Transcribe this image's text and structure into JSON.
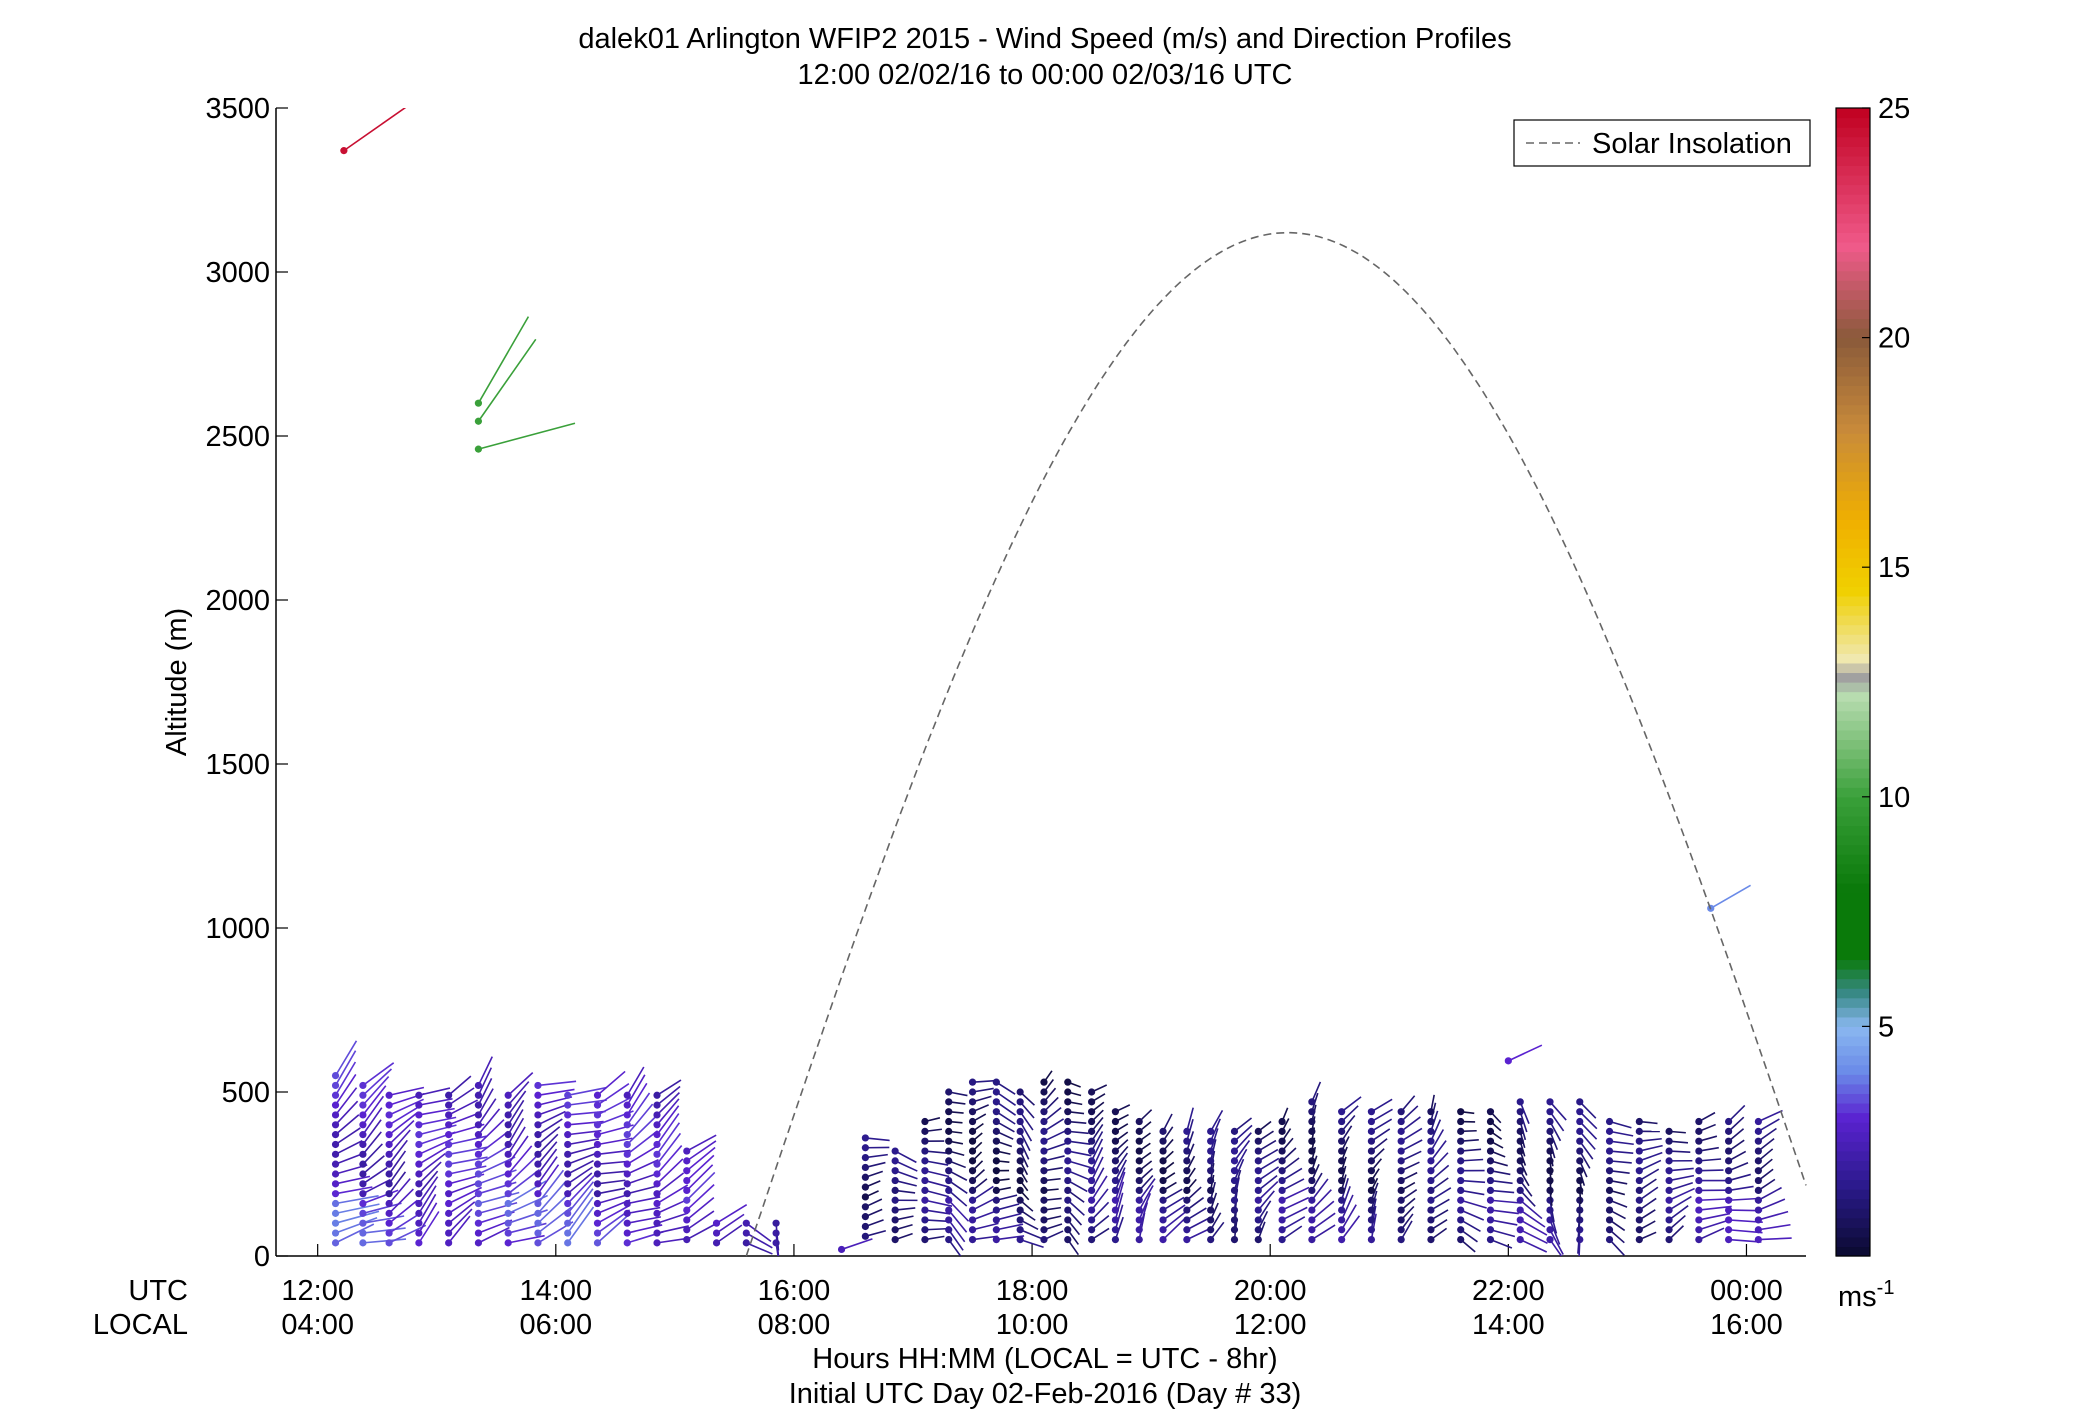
{
  "chart_data": {
    "type": "scatter",
    "title": "dalek01 Arlington WFIP2 2015 - Wind Speed (m/s) and Direction Profiles",
    "subtitle": "12:00 02/02/16 to 00:00 02/03/16  UTC",
    "ylabel": "Altitude (m)",
    "xlabel": "Hours HH:MM  (LOCAL = UTC - 8hr)",
    "xlabel2": "Initial UTC Day 02-Feb-2016 (Day # 33)",
    "row_label_utc": "UTC",
    "row_label_local": "LOCAL",
    "ylim": [
      0,
      3500
    ],
    "xlim": [
      11.65,
      24.5
    ],
    "yticks": [
      0,
      500,
      1000,
      1500,
      2000,
      2500,
      3000,
      3500
    ],
    "xticks_utc": [
      {
        "h": 12,
        "label": "12:00"
      },
      {
        "h": 14,
        "label": "14:00"
      },
      {
        "h": 16,
        "label": "16:00"
      },
      {
        "h": 18,
        "label": "18:00"
      },
      {
        "h": 20,
        "label": "20:00"
      },
      {
        "h": 22,
        "label": "22:00"
      },
      {
        "h": 24,
        "label": "00:00"
      }
    ],
    "xticks_local": [
      "04:00",
      "06:00",
      "08:00",
      "10:00",
      "12:00",
      "14:00",
      "16:00"
    ],
    "legend": {
      "label": "Solar Insolation",
      "position": "top-right",
      "style": "dashed",
      "color": "#666666"
    },
    "solar_insolation": {
      "start_h": 15.6,
      "end_h": 24.5,
      "peak_h": 20.15,
      "peak_altitude": 3120
    },
    "colorbar": {
      "min": 0,
      "max": 25,
      "ticks": [
        5,
        10,
        15,
        20,
        25
      ],
      "unit_label": "ms",
      "unit_exp": "-1",
      "stops": [
        {
          "v": 0,
          "c": "#0a0a2e"
        },
        {
          "v": 1.5,
          "c": "#2a1a8a"
        },
        {
          "v": 3,
          "c": "#5a22d0"
        },
        {
          "v": 4,
          "c": "#6a8ae8"
        },
        {
          "v": 5,
          "c": "#8ab8f0"
        },
        {
          "v": 5.7,
          "c": "#3a8a8a"
        },
        {
          "v": 6.5,
          "c": "#0a7a0a"
        },
        {
          "v": 8,
          "c": "#0a7a0a"
        },
        {
          "v": 10,
          "c": "#3aa03a"
        },
        {
          "v": 12.2,
          "c": "#b8dcb0"
        },
        {
          "v": 12.6,
          "c": "#a0a0a0"
        },
        {
          "v": 13,
          "c": "#f0e8b0"
        },
        {
          "v": 14.5,
          "c": "#f0d000"
        },
        {
          "v": 16,
          "c": "#f0b000"
        },
        {
          "v": 18,
          "c": "#c88a3a"
        },
        {
          "v": 20,
          "c": "#8a5a3a"
        },
        {
          "v": 22,
          "c": "#f05a8a"
        },
        {
          "v": 25,
          "c": "#c00020"
        }
      ]
    },
    "series": [
      {
        "profiles": [
          {
            "h": 12.15,
            "z0": 40,
            "z1": 560,
            "dz": 30,
            "speed": 2.8,
            "dir": 235
          },
          {
            "h": 12.38,
            "z0": 40,
            "z1": 530,
            "dz": 30,
            "speed": 2.6,
            "dir": 240
          },
          {
            "h": 12.6,
            "z0": 40,
            "z1": 510,
            "dz": 30,
            "speed": 2.5,
            "dir": 240
          },
          {
            "h": 12.85,
            "z0": 40,
            "z1": 490,
            "dz": 30,
            "speed": 2.6,
            "dir": 235
          },
          {
            "h": 13.1,
            "z0": 40,
            "z1": 495,
            "dz": 30,
            "speed": 2.7,
            "dir": 235
          },
          {
            "h": 13.35,
            "z0": 40,
            "z1": 520,
            "dz": 30,
            "speed": 2.8,
            "dir": 230
          },
          {
            "h": 13.6,
            "z0": 40,
            "z1": 505,
            "dz": 30,
            "speed": 2.7,
            "dir": 235
          },
          {
            "h": 13.85,
            "z0": 40,
            "z1": 525,
            "dz": 30,
            "speed": 2.6,
            "dir": 240
          },
          {
            "h": 14.1,
            "z0": 40,
            "z1": 500,
            "dz": 30,
            "speed": 2.7,
            "dir": 240
          },
          {
            "h": 14.35,
            "z0": 40,
            "z1": 500,
            "dz": 30,
            "speed": 2.6,
            "dir": 240
          },
          {
            "h": 14.6,
            "z0": 40,
            "z1": 495,
            "dz": 30,
            "speed": 2.7,
            "dir": 235
          },
          {
            "h": 14.85,
            "z0": 40,
            "z1": 495,
            "dz": 30,
            "speed": 2.6,
            "dir": 240
          },
          {
            "h": 15.1,
            "z0": 50,
            "z1": 330,
            "dz": 30,
            "speed": 2.4,
            "dir": 250
          },
          {
            "h": 15.35,
            "z0": 40,
            "z1": 100,
            "dz": 30,
            "speed": 2.0,
            "dir": 260
          },
          {
            "h": 15.6,
            "z0": 40,
            "z1": 100,
            "dz": 30,
            "speed": 1.2,
            "dir": 300
          },
          {
            "h": 15.85,
            "z0": 40,
            "z1": 100,
            "dz": 30,
            "speed": 1.0,
            "dir": 330
          },
          {
            "h": 16.4,
            "z0": 20,
            "z1": 20,
            "dz": 30,
            "speed": 1.5,
            "dir": 230
          },
          {
            "h": 16.6,
            "z0": 60,
            "z1": 360,
            "dz": 30,
            "speed": 1.0,
            "dir": 270
          },
          {
            "h": 16.85,
            "z0": 50,
            "z1": 340,
            "dz": 30,
            "speed": 1.0,
            "dir": 275
          },
          {
            "h": 17.1,
            "z0": 50,
            "z1": 420,
            "dz": 30,
            "speed": 1.1,
            "dir": 260
          },
          {
            "h": 17.3,
            "z0": 50,
            "z1": 520,
            "dz": 30,
            "speed": 1.0,
            "dir": 300
          },
          {
            "h": 17.5,
            "z0": 50,
            "z1": 530,
            "dz": 30,
            "speed": 0.8,
            "dir": 250
          },
          {
            "h": 17.7,
            "z0": 50,
            "z1": 550,
            "dz": 30,
            "speed": 0.9,
            "dir": 280
          },
          {
            "h": 17.9,
            "z0": 50,
            "z1": 520,
            "dz": 30,
            "speed": 0.8,
            "dir": 310
          },
          {
            "h": 18.1,
            "z0": 50,
            "z1": 530,
            "dz": 30,
            "speed": 0.9,
            "dir": 240
          },
          {
            "h": 18.3,
            "z0": 50,
            "z1": 550,
            "dz": 30,
            "speed": 1.0,
            "dir": 300
          },
          {
            "h": 18.5,
            "z0": 50,
            "z1": 500,
            "dz": 30,
            "speed": 1.2,
            "dir": 230
          },
          {
            "h": 18.7,
            "z0": 50,
            "z1": 450,
            "dz": 30,
            "speed": 1.1,
            "dir": 220
          },
          {
            "h": 18.9,
            "z0": 50,
            "z1": 420,
            "dz": 30,
            "speed": 1.0,
            "dir": 210
          },
          {
            "h": 19.1,
            "z0": 50,
            "z1": 400,
            "dz": 30,
            "speed": 1.0,
            "dir": 215
          },
          {
            "h": 19.3,
            "z0": 50,
            "z1": 390,
            "dz": 30,
            "speed": 1.1,
            "dir": 220
          },
          {
            "h": 19.5,
            "z0": 50,
            "z1": 380,
            "dz": 30,
            "speed": 1.0,
            "dir": 215
          },
          {
            "h": 19.7,
            "z0": 50,
            "z1": 380,
            "dz": 30,
            "speed": 1.1,
            "dir": 210
          },
          {
            "h": 19.9,
            "z0": 50,
            "z1": 400,
            "dz": 30,
            "speed": 1.0,
            "dir": 215
          },
          {
            "h": 20.1,
            "z0": 50,
            "z1": 420,
            "dz": 30,
            "speed": 1.1,
            "dir": 220
          },
          {
            "h": 20.35,
            "z0": 50,
            "z1": 480,
            "dz": 30,
            "speed": 1.0,
            "dir": 215
          },
          {
            "h": 20.6,
            "z0": 50,
            "z1": 460,
            "dz": 30,
            "speed": 1.1,
            "dir": 220
          },
          {
            "h": 20.85,
            "z0": 50,
            "z1": 440,
            "dz": 30,
            "speed": 1.0,
            "dir": 215
          },
          {
            "h": 21.1,
            "z0": 50,
            "z1": 440,
            "dz": 30,
            "speed": 1.0,
            "dir": 220
          },
          {
            "h": 21.35,
            "z0": 50,
            "z1": 450,
            "dz": 30,
            "speed": 1.1,
            "dir": 215
          },
          {
            "h": 21.6,
            "z0": 50,
            "z1": 460,
            "dz": 30,
            "speed": 1.0,
            "dir": 290
          },
          {
            "h": 21.85,
            "z0": 50,
            "z1": 450,
            "dz": 30,
            "speed": 1.0,
            "dir": 300
          },
          {
            "h": 22.1,
            "z0": 50,
            "z1": 490,
            "dz": 30,
            "speed": 1.2,
            "dir": 320
          },
          {
            "h": 22.35,
            "z0": 50,
            "z1": 480,
            "dz": 30,
            "speed": 1.0,
            "dir": 330
          },
          {
            "h": 22.6,
            "z0": 50,
            "z1": 480,
            "dz": 30,
            "speed": 1.0,
            "dir": 340
          },
          {
            "h": 22.85,
            "z0": 50,
            "z1": 420,
            "dz": 30,
            "speed": 1.0,
            "dir": 300
          },
          {
            "h": 23.1,
            "z0": 50,
            "z1": 410,
            "dz": 30,
            "speed": 1.0,
            "dir": 260
          },
          {
            "h": 23.35,
            "z0": 50,
            "z1": 400,
            "dz": 30,
            "speed": 1.1,
            "dir": 250
          },
          {
            "h": 23.6,
            "z0": 50,
            "z1": 410,
            "dz": 30,
            "speed": 1.5,
            "dir": 245
          },
          {
            "h": 23.85,
            "z0": 50,
            "z1": 420,
            "dz": 30,
            "speed": 1.6,
            "dir": 250
          },
          {
            "h": 24.1,
            "z0": 50,
            "z1": 410,
            "dz": 30,
            "speed": 1.5,
            "dir": 255
          }
        ],
        "isolated": [
          {
            "h": 12.22,
            "z": 3370,
            "speed": 24.5,
            "dir": 235
          },
          {
            "h": 13.35,
            "z": 2600,
            "speed": 10.0,
            "dir": 210
          },
          {
            "h": 13.35,
            "z": 2545,
            "speed": 10.0,
            "dir": 215
          },
          {
            "h": 13.35,
            "z": 2460,
            "speed": 10.0,
            "dir": 255
          },
          {
            "h": 23.7,
            "z": 1060,
            "speed": 4.0,
            "dir": 240
          },
          {
            "h": 22.0,
            "z": 595,
            "speed": 3.0,
            "dir": 245
          }
        ]
      }
    ]
  }
}
